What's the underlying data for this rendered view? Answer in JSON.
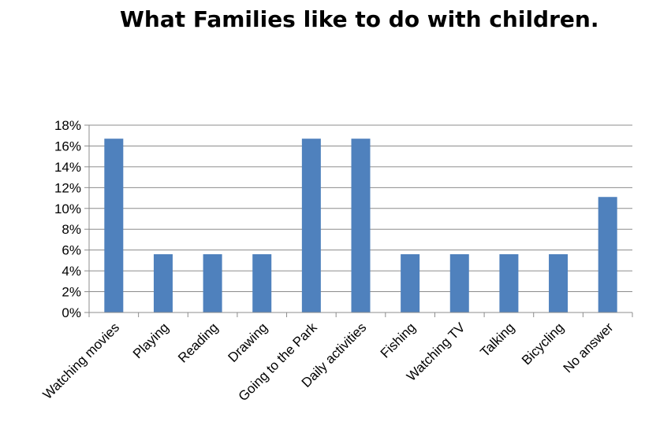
{
  "chart_data": {
    "type": "bar",
    "title": "What Families like to do with children.",
    "xlabel": "",
    "ylabel": "",
    "categories": [
      "Watching movies",
      "Playing",
      "Reading",
      "Drawing",
      "Going to the Park",
      "Daily activities",
      "Fishing",
      "Watching TV",
      "Talking",
      "Bicycling",
      "No answer"
    ],
    "values": [
      16.7,
      5.6,
      5.6,
      5.6,
      16.7,
      16.7,
      5.6,
      5.6,
      5.6,
      5.6,
      11.1
    ],
    "ylim": [
      0,
      18
    ],
    "yticks": [
      "0%",
      "2%",
      "4%",
      "6%",
      "8%",
      "10%",
      "12%",
      "14%",
      "16%",
      "18%"
    ],
    "grid": true,
    "legend": "none",
    "bar_color": "#4f81bd"
  }
}
